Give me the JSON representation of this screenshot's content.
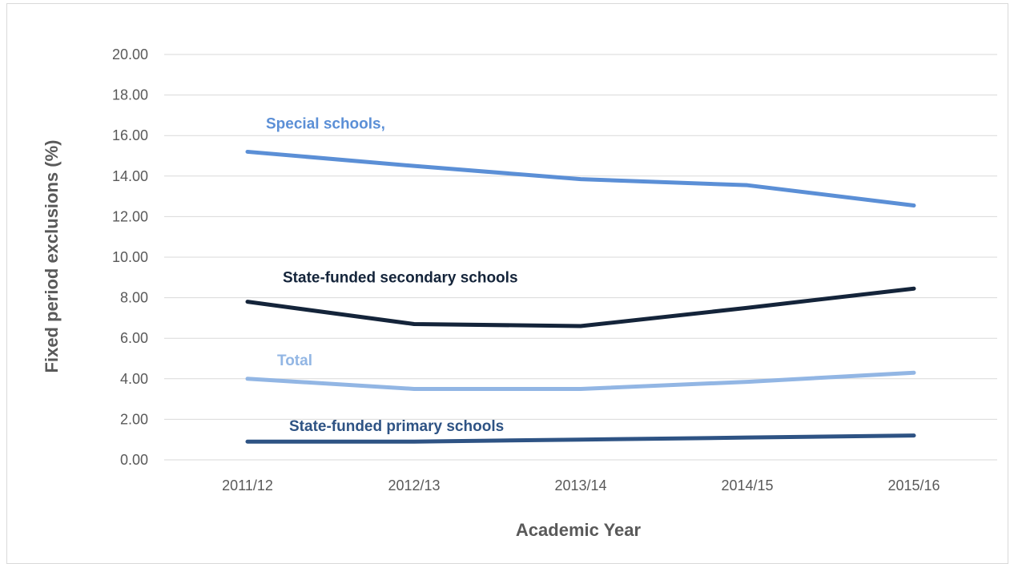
{
  "chart_data": {
    "type": "line",
    "title": "",
    "xlabel": "Academic Year",
    "ylabel": "Fixed period exclusions (%)",
    "categories": [
      "2011/12",
      "2012/13",
      "2013/14",
      "2014/15",
      "2015/16"
    ],
    "ylim": [
      0,
      20
    ],
    "yticks": [
      "0.00",
      "2.00",
      "4.00",
      "6.00",
      "8.00",
      "10.00",
      "12.00",
      "14.00",
      "16.00",
      "18.00",
      "20.00"
    ],
    "grid": true,
    "series": [
      {
        "name": "Special schools,",
        "color": "#5b8fd6",
        "values": [
          15.2,
          14.5,
          13.85,
          13.55,
          12.55
        ]
      },
      {
        "name": "State-funded secondary schools",
        "color": "#14243a",
        "values": [
          7.8,
          6.7,
          6.6,
          7.5,
          8.45
        ]
      },
      {
        "name": "Total",
        "color": "#92b6e4",
        "values": [
          4.0,
          3.5,
          3.5,
          3.85,
          4.3
        ]
      },
      {
        "name": "State-funded primary schools",
        "color": "#2e5384",
        "values": [
          0.9,
          0.9,
          1.0,
          1.1,
          1.2
        ]
      }
    ]
  }
}
